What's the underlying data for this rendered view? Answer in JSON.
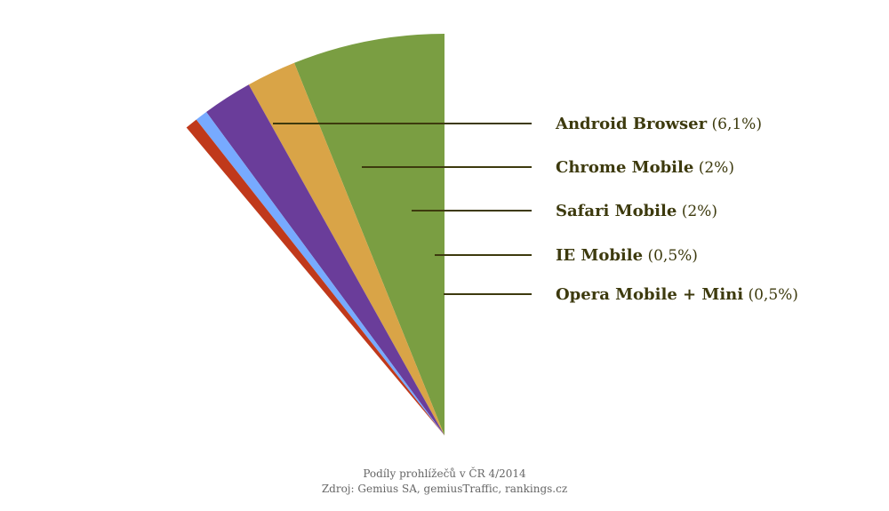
{
  "chart_data": {
    "type": "pie",
    "series": [
      {
        "name": "Android Browser",
        "value_label": "(6,1%)",
        "value": 6.1,
        "color": "#7a9e42"
      },
      {
        "name": "Chrome Mobile",
        "value_label": "(2%)",
        "value": 2.0,
        "color": "#d9a447"
      },
      {
        "name": "Safari Mobile",
        "value_label": "(2%)",
        "value": 2.0,
        "color": "#6a3d9a"
      },
      {
        "name": "IE Mobile",
        "value_label": "(0,5%)",
        "value": 0.5,
        "color": "#77aaff"
      },
      {
        "name": "Opera Mobile + Mini",
        "value_label": "(0,5%)",
        "value": 0.5,
        "color": "#c0391b"
      }
    ],
    "caption": "Podíly prohlížečů v ČR 4/2014",
    "source": "Zdroj: Gemius SA, gemiusTraffic, rankings.cz"
  },
  "colors": {
    "leader_line": "#3d3a0e",
    "legend_text": "#3d3a0e"
  }
}
